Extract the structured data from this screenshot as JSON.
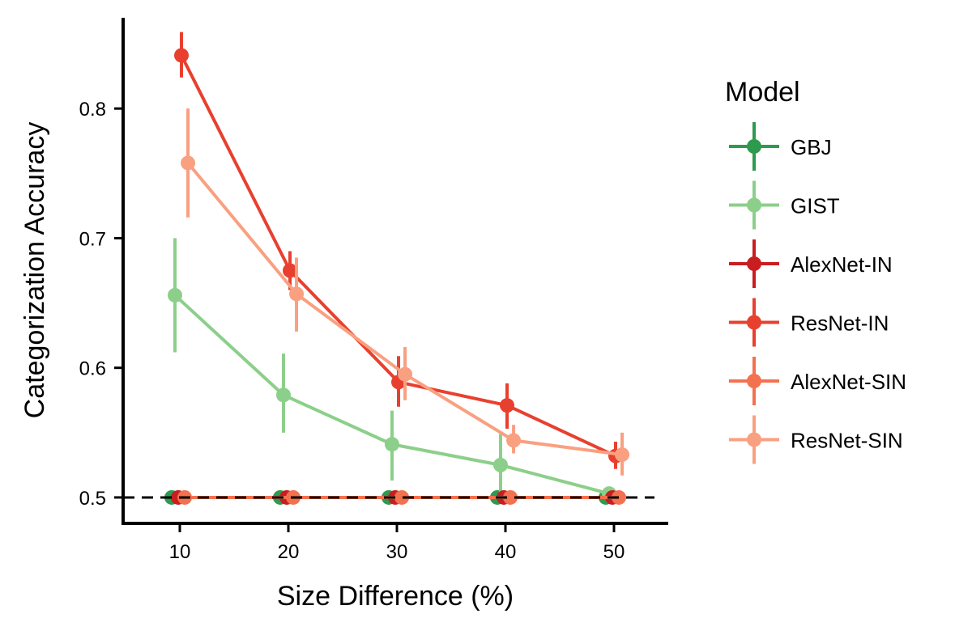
{
  "chart_data": {
    "type": "line",
    "title": "",
    "xlabel": "Size Difference (%)",
    "ylabel": "Categorization Accuracy",
    "xlim": [
      5,
      55
    ],
    "ylim": [
      0.48,
      0.87
    ],
    "x_ticks": [
      10,
      20,
      30,
      40,
      50
    ],
    "x_tick_labels": [
      "10",
      "20",
      "30",
      "40",
      "50"
    ],
    "y_ticks": [
      0.5,
      0.6,
      0.7,
      0.8
    ],
    "y_tick_labels": [
      "0.5",
      "0.6",
      "0.7",
      "0.8"
    ],
    "grid": false,
    "chance_line": 0.5,
    "legend": {
      "title": "Model",
      "position": "right"
    },
    "x": [
      10,
      20,
      30,
      40,
      50
    ],
    "series": [
      {
        "name": "GBJ",
        "color": "#2e9a4e",
        "offset": -0.75,
        "values": [
          0.5,
          0.5,
          0.5,
          0.5,
          0.5
        ],
        "err_low": [
          0.5,
          0.5,
          0.5,
          0.5,
          0.5
        ],
        "err_high": [
          0.5,
          0.5,
          0.5,
          0.5,
          0.5
        ]
      },
      {
        "name": "GIST",
        "color": "#8ccf8a",
        "offset": -0.45,
        "values": [
          0.656,
          0.579,
          0.541,
          0.525,
          0.503
        ],
        "err_low": [
          0.612,
          0.55,
          0.513,
          0.498,
          0.5
        ],
        "err_high": [
          0.7,
          0.611,
          0.567,
          0.549,
          0.506
        ]
      },
      {
        "name": "AlexNet-IN",
        "color": "#c81e22",
        "offset": -0.15,
        "values": [
          0.5,
          0.5,
          0.5,
          0.5,
          0.5
        ],
        "err_low": [
          0.5,
          0.5,
          0.5,
          0.5,
          0.5
        ],
        "err_high": [
          0.5,
          0.5,
          0.5,
          0.5,
          0.5
        ]
      },
      {
        "name": "ResNet-IN",
        "color": "#e8402f",
        "offset": 0.15,
        "values": [
          0.841,
          0.675,
          0.589,
          0.571,
          0.532
        ],
        "err_low": [
          0.824,
          0.66,
          0.57,
          0.553,
          0.522
        ],
        "err_high": [
          0.859,
          0.69,
          0.609,
          0.588,
          0.543
        ]
      },
      {
        "name": "AlexNet-SIN",
        "color": "#f4714f",
        "offset": 0.45,
        "values": [
          0.5,
          0.5,
          0.5,
          0.5,
          0.5
        ],
        "err_low": [
          0.5,
          0.5,
          0.5,
          0.5,
          0.5
        ],
        "err_high": [
          0.5,
          0.5,
          0.5,
          0.5,
          0.5
        ]
      },
      {
        "name": "ResNet-SIN",
        "color": "#f9a081",
        "offset": 0.75,
        "values": [
          0.758,
          0.657,
          0.595,
          0.544,
          0.533
        ],
        "err_low": [
          0.716,
          0.628,
          0.575,
          0.534,
          0.517
        ],
        "err_high": [
          0.8,
          0.685,
          0.616,
          0.556,
          0.55
        ]
      }
    ]
  }
}
